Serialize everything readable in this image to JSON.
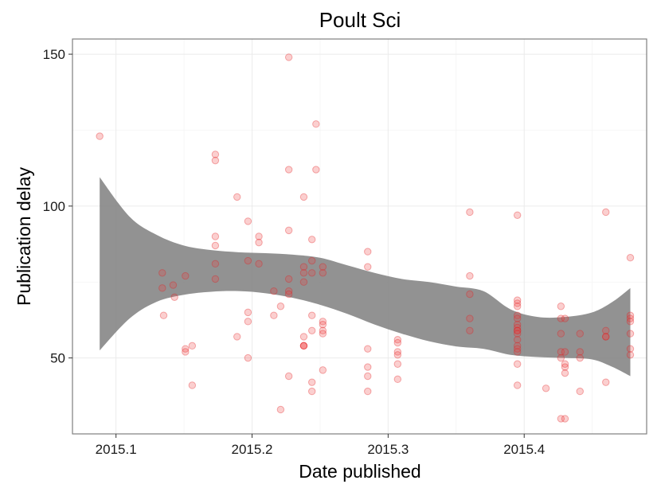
{
  "chart_data": {
    "type": "scatter",
    "title": "Poult Sci",
    "xlabel": "Date published",
    "ylabel": "Publication delay",
    "xlim": [
      2015.068,
      2015.49
    ],
    "ylim": [
      25,
      155
    ],
    "x_ticks": [
      2015.1,
      2015.2,
      2015.3,
      2015.4
    ],
    "x_tick_labels": [
      "2015.1",
      "2015.2",
      "2015.3",
      "2015.4"
    ],
    "y_ticks": [
      50,
      100,
      150
    ],
    "y_tick_labels": [
      "50",
      "100",
      "150"
    ],
    "grid": true,
    "legend": "none",
    "point_color": "#e31a1c",
    "ribbon_color": "#7f7f7f",
    "points": [
      [
        2015.088,
        123
      ],
      [
        2015.134,
        78
      ],
      [
        2015.134,
        73
      ],
      [
        2015.135,
        64
      ],
      [
        2015.142,
        74
      ],
      [
        2015.143,
        70
      ],
      [
        2015.151,
        77
      ],
      [
        2015.151,
        53
      ],
      [
        2015.151,
        52
      ],
      [
        2015.156,
        54
      ],
      [
        2015.156,
        41
      ],
      [
        2015.173,
        117
      ],
      [
        2015.173,
        115
      ],
      [
        2015.173,
        90
      ],
      [
        2015.173,
        87
      ],
      [
        2015.173,
        81
      ],
      [
        2015.173,
        76
      ],
      [
        2015.189,
        103
      ],
      [
        2015.189,
        57
      ],
      [
        2015.197,
        95
      ],
      [
        2015.197,
        82
      ],
      [
        2015.197,
        65
      ],
      [
        2015.197,
        62
      ],
      [
        2015.197,
        50
      ],
      [
        2015.205,
        90
      ],
      [
        2015.205,
        88
      ],
      [
        2015.205,
        81
      ],
      [
        2015.216,
        72
      ],
      [
        2015.216,
        64
      ],
      [
        2015.221,
        67
      ],
      [
        2015.221,
        33
      ],
      [
        2015.227,
        149
      ],
      [
        2015.227,
        112
      ],
      [
        2015.227,
        92
      ],
      [
        2015.227,
        76
      ],
      [
        2015.227,
        72
      ],
      [
        2015.227,
        71
      ],
      [
        2015.227,
        44
      ],
      [
        2015.238,
        103
      ],
      [
        2015.238,
        80
      ],
      [
        2015.238,
        78
      ],
      [
        2015.238,
        75
      ],
      [
        2015.238,
        57
      ],
      [
        2015.238,
        54
      ],
      [
        2015.238,
        54
      ],
      [
        2015.238,
        54
      ],
      [
        2015.244,
        89
      ],
      [
        2015.244,
        82
      ],
      [
        2015.244,
        78
      ],
      [
        2015.244,
        64
      ],
      [
        2015.244,
        59
      ],
      [
        2015.244,
        42
      ],
      [
        2015.244,
        39
      ],
      [
        2015.247,
        127
      ],
      [
        2015.247,
        112
      ],
      [
        2015.252,
        80
      ],
      [
        2015.252,
        78
      ],
      [
        2015.252,
        62
      ],
      [
        2015.252,
        61
      ],
      [
        2015.252,
        59
      ],
      [
        2015.252,
        58
      ],
      [
        2015.252,
        46
      ],
      [
        2015.285,
        85
      ],
      [
        2015.285,
        80
      ],
      [
        2015.285,
        53
      ],
      [
        2015.285,
        47
      ],
      [
        2015.285,
        44
      ],
      [
        2015.285,
        39
      ],
      [
        2015.307,
        56
      ],
      [
        2015.307,
        55
      ],
      [
        2015.307,
        52
      ],
      [
        2015.307,
        51
      ],
      [
        2015.307,
        48
      ],
      [
        2015.307,
        43
      ],
      [
        2015.36,
        98
      ],
      [
        2015.36,
        77
      ],
      [
        2015.36,
        71
      ],
      [
        2015.36,
        63
      ],
      [
        2015.36,
        59
      ],
      [
        2015.395,
        97
      ],
      [
        2015.395,
        69
      ],
      [
        2015.395,
        68
      ],
      [
        2015.395,
        67
      ],
      [
        2015.395,
        64
      ],
      [
        2015.395,
        63
      ],
      [
        2015.395,
        61
      ],
      [
        2015.395,
        60
      ],
      [
        2015.395,
        59
      ],
      [
        2015.395,
        59
      ],
      [
        2015.395,
        58
      ],
      [
        2015.395,
        56
      ],
      [
        2015.395,
        54
      ],
      [
        2015.395,
        53
      ],
      [
        2015.395,
        52
      ],
      [
        2015.395,
        48
      ],
      [
        2015.395,
        41
      ],
      [
        2015.416,
        40
      ],
      [
        2015.427,
        67
      ],
      [
        2015.427,
        63
      ],
      [
        2015.427,
        58
      ],
      [
        2015.427,
        52
      ],
      [
        2015.427,
        50
      ],
      [
        2015.427,
        30
      ],
      [
        2015.43,
        63
      ],
      [
        2015.43,
        52
      ],
      [
        2015.43,
        48
      ],
      [
        2015.43,
        47
      ],
      [
        2015.43,
        45
      ],
      [
        2015.43,
        30
      ],
      [
        2015.441,
        58
      ],
      [
        2015.441,
        52
      ],
      [
        2015.441,
        50
      ],
      [
        2015.441,
        39
      ],
      [
        2015.46,
        98
      ],
      [
        2015.46,
        59
      ],
      [
        2015.46,
        57
      ],
      [
        2015.46,
        57
      ],
      [
        2015.46,
        42
      ],
      [
        2015.478,
        83
      ],
      [
        2015.478,
        64
      ],
      [
        2015.478,
        63
      ],
      [
        2015.478,
        62
      ],
      [
        2015.478,
        58
      ],
      [
        2015.478,
        53
      ],
      [
        2015.478,
        51
      ]
    ],
    "confidence_band": {
      "x": [
        2015.088,
        2015.11,
        2015.13,
        2015.15,
        2015.17,
        2015.19,
        2015.21,
        2015.23,
        2015.25,
        2015.27,
        2015.29,
        2015.31,
        2015.33,
        2015.35,
        2015.37,
        2015.39,
        2015.41,
        2015.43,
        2015.45,
        2015.465,
        2015.478
      ],
      "lower": [
        52.5,
        63,
        68.5,
        70.8,
        71.8,
        72,
        71.3,
        69.8,
        67.5,
        64.5,
        61,
        58,
        55.5,
        53.8,
        53,
        51,
        50.3,
        50,
        49.5,
        47,
        44
      ],
      "upper": [
        109.5,
        96.5,
        90.5,
        87,
        85.5,
        84.8,
        84.5,
        84,
        83,
        80.5,
        78,
        76,
        75,
        73.5,
        72,
        66,
        63.5,
        63.5,
        65,
        68.5,
        73
      ]
    }
  }
}
